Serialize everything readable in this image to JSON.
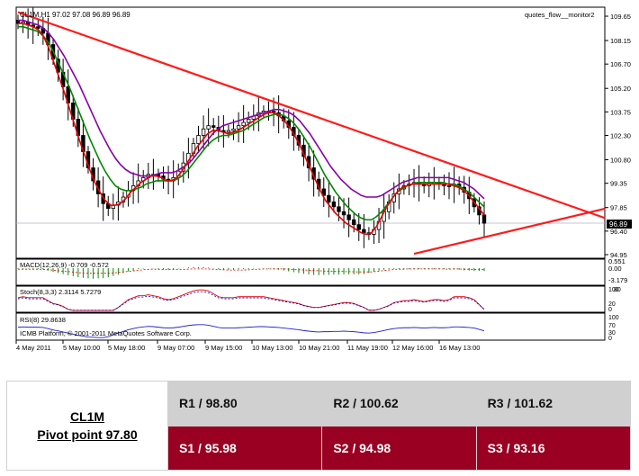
{
  "chart_data": {
    "type": "candlestick",
    "header": "CL1M,H1  97.02 97.08 96.89 96.89",
    "indicator_label": "quotes_flow__monitor2",
    "price_axis": [
      109.65,
      108.15,
      106.7,
      105.2,
      103.75,
      102.3,
      100.8,
      99.35,
      97.85,
      96.4,
      94.95
    ],
    "current_price": "96.89",
    "x_labels": [
      "4 May 2011",
      "5 May 10:00",
      "5 May 18:00",
      "9 May 07:00",
      "9 May 15:00",
      "10 May 13:00",
      "10 May 21:00",
      "11 May 19:00",
      "12 May 16:00",
      "16 May 13:00"
    ],
    "macd_label": "MACD(12,26,9) -0.709 -0.572",
    "macd_axis": [
      "0.551",
      "0.00",
      "-3.179"
    ],
    "stoch_label": "Stoch(8,3,3) 2.3114 5.7279",
    "stoch_axis": [
      "100",
      "80",
      "20",
      "0"
    ],
    "rsi_label": "RSI(8) 29.8638",
    "rsi_axis": [
      "100",
      "70",
      "30",
      "0"
    ],
    "copyright": "ICMB Platform, © 2001-2011 MetaQuotes Software Corp.",
    "trendlines": [
      {
        "name": "resistance",
        "from": [
          0,
          109.9
        ],
        "to": [
          131,
          95.7
        ]
      },
      {
        "name": "support",
        "from": [
          79,
          95.0
        ],
        "to": [
          131,
          98.8
        ]
      }
    ],
    "price_data_close": [
      109.2,
      109.3,
      109.1,
      109.0,
      108.9,
      108.6,
      107.9,
      107.0,
      106.2,
      105.3,
      104.3,
      103.3,
      102.3,
      101.3,
      100.3,
      99.5,
      98.7,
      98.1,
      97.8,
      98.0,
      98.2,
      98.5,
      98.9,
      99.2,
      99.5,
      99.7,
      99.9,
      99.9,
      99.8,
      99.6,
      99.5,
      99.7,
      100.1,
      100.6,
      101.2,
      101.8,
      102.3,
      102.7,
      102.9,
      102.8,
      102.6,
      102.5,
      102.6,
      102.7,
      102.9,
      103.1,
      103.3,
      103.5,
      103.7,
      103.8,
      103.8,
      103.7,
      103.5,
      103.2,
      102.8,
      102.3,
      101.7,
      101.0,
      100.3,
      99.6,
      99.0,
      98.6,
      98.2,
      97.9,
      97.6,
      97.4,
      97.1,
      96.8,
      96.5,
      96.3,
      96.2,
      96.5,
      97.0,
      97.6,
      98.2,
      98.7,
      99.0,
      99.2,
      99.3,
      99.4,
      99.3,
      99.2,
      99.3,
      99.4,
      99.3,
      99.2,
      99.2,
      99.3,
      99.1,
      98.8,
      98.4,
      97.9,
      97.4,
      96.89
    ],
    "ma_fast": [
      109.2,
      109.2,
      109.1,
      109.0,
      108.8,
      108.4,
      107.7,
      106.8,
      105.9,
      105.0,
      104.0,
      103.0,
      102.0,
      101.1,
      100.2,
      99.4,
      98.8,
      98.3,
      98.0,
      98.0,
      98.1,
      98.4,
      98.8,
      99.1,
      99.4,
      99.6,
      99.8,
      99.8,
      99.7,
      99.5,
      99.5,
      99.7,
      100.1,
      100.6,
      101.1,
      101.6,
      102.0,
      102.4,
      102.6,
      102.6,
      102.5,
      102.4,
      102.5,
      102.6,
      102.8,
      103.0,
      103.2,
      103.4,
      103.6,
      103.7,
      103.7,
      103.5,
      103.2,
      102.8,
      102.3,
      101.7,
      101.0,
      100.3,
      99.6,
      98.9,
      98.3,
      97.9,
      97.5,
      97.2,
      96.9,
      96.7,
      96.5,
      96.3,
      96.2,
      96.3,
      96.7,
      97.3,
      97.9,
      98.4,
      98.8,
      99.1,
      99.2,
      99.3,
      99.3,
      99.3,
      99.3,
      99.3,
      99.3,
      99.3,
      99.3,
      99.2,
      99.1,
      98.9,
      98.6,
      98.2,
      97.8,
      97.4
    ],
    "ma_mid": [
      109.0,
      109.0,
      108.9,
      108.8,
      108.7,
      108.4,
      108.0,
      107.4,
      106.7,
      106.0,
      105.3,
      104.5,
      103.7,
      102.9,
      102.1,
      101.4,
      100.7,
      100.1,
      99.6,
      99.2,
      99.0,
      98.9,
      98.9,
      99.0,
      99.1,
      99.3,
      99.4,
      99.5,
      99.5,
      99.5,
      99.5,
      99.6,
      99.8,
      100.1,
      100.5,
      100.9,
      101.3,
      101.7,
      102.0,
      102.2,
      102.3,
      102.3,
      102.4,
      102.5,
      102.6,
      102.8,
      103.0,
      103.2,
      103.4,
      103.5,
      103.6,
      103.6,
      103.5,
      103.3,
      103.0,
      102.6,
      102.1,
      101.6,
      101.0,
      100.4,
      99.8,
      99.3,
      98.8,
      98.4,
      98.0,
      97.7,
      97.4,
      97.2,
      97.1,
      97.1,
      97.3,
      97.6,
      98.0,
      98.4,
      98.8,
      99.0,
      99.2,
      99.3,
      99.4,
      99.4,
      99.4,
      99.4,
      99.4,
      99.4,
      99.3,
      99.3,
      99.2,
      99.0,
      98.8,
      98.5,
      98.2,
      97.9
    ],
    "ma_slow": [
      109.4,
      109.4,
      109.3,
      109.2,
      109.1,
      108.9,
      108.6,
      108.2,
      107.7,
      107.2,
      106.6,
      106.0,
      105.4,
      104.7,
      104.0,
      103.3,
      102.6,
      102.0,
      101.4,
      100.9,
      100.5,
      100.2,
      100.0,
      99.9,
      99.8,
      99.8,
      99.8,
      99.9,
      100.0,
      100.0,
      100.0,
      100.1,
      100.3,
      100.5,
      100.8,
      101.2,
      101.6,
      102.0,
      102.4,
      102.7,
      102.9,
      103.0,
      103.1,
      103.2,
      103.3,
      103.4,
      103.5,
      103.6,
      103.7,
      103.8,
      103.9,
      103.9,
      103.8,
      103.7,
      103.5,
      103.2,
      102.8,
      102.4,
      101.9,
      101.4,
      100.9,
      100.4,
      100.0,
      99.6,
      99.3,
      99.0,
      98.8,
      98.6,
      98.5,
      98.5,
      98.5,
      98.6,
      98.8,
      99.0,
      99.2,
      99.4,
      99.5,
      99.6,
      99.7,
      99.7,
      99.7,
      99.7,
      99.7,
      99.7,
      99.7,
      99.6,
      99.5,
      99.4,
      99.2,
      99.0,
      98.7,
      98.4
    ]
  },
  "pivot": {
    "symbol": "CL1M",
    "pivot_label": "Pivot point 97.80",
    "r1": "R1 / 98.80",
    "r2": "R2  / 100.62",
    "r3": "R3 / 101.62",
    "s1": "S1 / 95.98",
    "s2": "S2 /  94.98",
    "s3": "S3 /  93.16"
  },
  "colors": {
    "trend": "#ff1a1a",
    "ma_fast": "#e60000",
    "ma_mid": "#008800",
    "ma_slow": "#8800aa",
    "resistance_bg": "#d0d0d0",
    "support_bg": "#990022"
  }
}
